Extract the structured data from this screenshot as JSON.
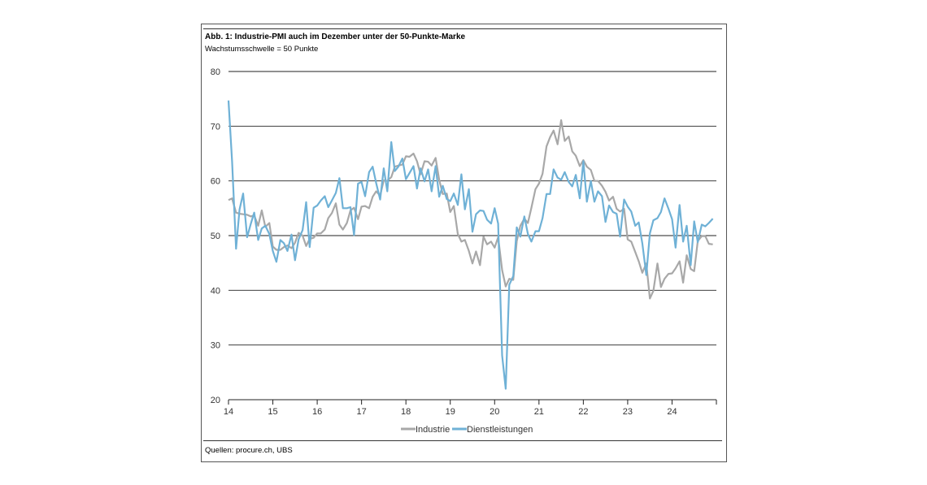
{
  "title": "Abb. 1: Industrie-PMI auch im Dezember unter der 50-Punkte-Marke",
  "subtitle": "Wachstumsschwelle = 50 Punkte",
  "source": "Quellen: procure.ch, UBS",
  "chart_data": {
    "type": "line",
    "title": "Abb. 1: Industrie-PMI auch im Dezember unter der 50-Punkte-Marke",
    "subtitle": "Wachstumsschwelle = 50 Punkte",
    "xlabel": "",
    "ylabel": "",
    "xlim": [
      2014.0,
      2025.0
    ],
    "ylim": [
      20,
      80
    ],
    "yticks": [
      20,
      30,
      40,
      50,
      60,
      70,
      80
    ],
    "xticks": [
      "14",
      "15",
      "16",
      "17",
      "18",
      "19",
      "20",
      "21",
      "22",
      "23",
      "24"
    ],
    "grid": "horizontal",
    "legend": "bottom-center",
    "colors": {
      "Industrie": "#a8a8a8",
      "Dienstleistungen": "#6fb1d6"
    },
    "series": [
      {
        "name": "Industrie",
        "points": [
          [
            2014.0,
            56.5
          ],
          [
            2014.08,
            56.8
          ],
          [
            2014.17,
            54.2
          ],
          [
            2014.25,
            54.0
          ],
          [
            2014.33,
            53.9
          ],
          [
            2014.42,
            53.8
          ],
          [
            2014.5,
            53.5
          ],
          [
            2014.58,
            53.7
          ],
          [
            2014.67,
            51.8
          ],
          [
            2014.75,
            54.6
          ],
          [
            2014.83,
            51.6
          ],
          [
            2014.92,
            52.3
          ],
          [
            2015.0,
            48.0
          ],
          [
            2015.08,
            47.4
          ],
          [
            2015.17,
            47.4
          ],
          [
            2015.25,
            47.9
          ],
          [
            2015.33,
            48.2
          ],
          [
            2015.42,
            47.7
          ],
          [
            2015.5,
            48.7
          ],
          [
            2015.58,
            50.5
          ],
          [
            2015.67,
            50.0
          ],
          [
            2015.75,
            48.1
          ],
          [
            2015.83,
            49.4
          ],
          [
            2015.92,
            49.6
          ],
          [
            2016.0,
            50.4
          ],
          [
            2016.08,
            50.4
          ],
          [
            2016.17,
            51.1
          ],
          [
            2016.25,
            53.2
          ],
          [
            2016.33,
            54.1
          ],
          [
            2016.42,
            55.9
          ],
          [
            2016.5,
            52.0
          ],
          [
            2016.58,
            51.1
          ],
          [
            2016.67,
            52.3
          ],
          [
            2016.75,
            54.6
          ],
          [
            2016.83,
            55.1
          ],
          [
            2016.92,
            53.0
          ],
          [
            2017.0,
            55.3
          ],
          [
            2017.08,
            55.4
          ],
          [
            2017.17,
            55.0
          ],
          [
            2017.25,
            57.1
          ],
          [
            2017.33,
            58.1
          ],
          [
            2017.42,
            57.3
          ],
          [
            2017.5,
            60.1
          ],
          [
            2017.58,
            60.0
          ],
          [
            2017.67,
            60.7
          ],
          [
            2017.75,
            62.6
          ],
          [
            2017.83,
            62.8
          ],
          [
            2017.92,
            63.0
          ],
          [
            2018.0,
            64.5
          ],
          [
            2018.08,
            64.4
          ],
          [
            2018.17,
            65.0
          ],
          [
            2018.25,
            63.6
          ],
          [
            2018.33,
            61.2
          ],
          [
            2018.42,
            63.6
          ],
          [
            2018.5,
            63.5
          ],
          [
            2018.58,
            62.8
          ],
          [
            2018.67,
            64.2
          ],
          [
            2018.75,
            60.2
          ],
          [
            2018.83,
            57.6
          ],
          [
            2018.92,
            57.7
          ],
          [
            2019.0,
            54.3
          ],
          [
            2019.08,
            55.4
          ],
          [
            2019.17,
            50.3
          ],
          [
            2019.25,
            48.9
          ],
          [
            2019.33,
            49.2
          ],
          [
            2019.42,
            47.2
          ],
          [
            2019.5,
            44.9
          ],
          [
            2019.58,
            47.1
          ],
          [
            2019.67,
            44.6
          ],
          [
            2019.75,
            49.8
          ],
          [
            2019.83,
            48.4
          ],
          [
            2019.92,
            48.9
          ],
          [
            2020.0,
            47.8
          ],
          [
            2020.08,
            49.7
          ],
          [
            2020.17,
            43.7
          ],
          [
            2020.25,
            40.7
          ],
          [
            2020.33,
            42.1
          ],
          [
            2020.42,
            41.9
          ],
          [
            2020.5,
            49.0
          ],
          [
            2020.58,
            51.8
          ],
          [
            2020.67,
            53.1
          ],
          [
            2020.75,
            52.3
          ],
          [
            2020.83,
            55.1
          ],
          [
            2020.92,
            58.5
          ],
          [
            2021.0,
            59.5
          ],
          [
            2021.08,
            61.3
          ],
          [
            2021.17,
            66.3
          ],
          [
            2021.25,
            68.0
          ],
          [
            2021.33,
            69.2
          ],
          [
            2021.42,
            66.7
          ],
          [
            2021.5,
            71.1
          ],
          [
            2021.58,
            67.3
          ],
          [
            2021.67,
            68.1
          ],
          [
            2021.75,
            65.4
          ],
          [
            2021.83,
            64.6
          ],
          [
            2021.92,
            62.7
          ],
          [
            2022.0,
            63.8
          ],
          [
            2022.08,
            62.6
          ],
          [
            2022.17,
            62.0
          ],
          [
            2022.25,
            60.0
          ],
          [
            2022.33,
            60.0
          ],
          [
            2022.42,
            59.1
          ],
          [
            2022.5,
            58.0
          ],
          [
            2022.58,
            56.4
          ],
          [
            2022.67,
            57.1
          ],
          [
            2022.75,
            54.9
          ],
          [
            2022.83,
            54.4
          ],
          [
            2022.92,
            54.9
          ],
          [
            2023.0,
            49.3
          ],
          [
            2023.08,
            48.9
          ],
          [
            2023.17,
            47.0
          ],
          [
            2023.25,
            45.3
          ],
          [
            2023.33,
            43.2
          ],
          [
            2023.42,
            44.9
          ],
          [
            2023.5,
            38.5
          ],
          [
            2023.58,
            39.9
          ],
          [
            2023.67,
            44.9
          ],
          [
            2023.75,
            40.6
          ],
          [
            2023.83,
            42.1
          ],
          [
            2023.92,
            43.0
          ],
          [
            2024.0,
            43.1
          ],
          [
            2024.08,
            44.0
          ],
          [
            2024.17,
            45.3
          ],
          [
            2024.25,
            41.4
          ],
          [
            2024.33,
            46.4
          ],
          [
            2024.42,
            43.9
          ],
          [
            2024.5,
            43.5
          ],
          [
            2024.58,
            49.0
          ],
          [
            2024.67,
            49.9
          ],
          [
            2024.75,
            49.9
          ],
          [
            2024.83,
            48.5
          ],
          [
            2024.92,
            48.4
          ]
        ]
      },
      {
        "name": "Dienstleistungen",
        "points": [
          [
            2014.0,
            74.7
          ],
          [
            2014.08,
            63.6
          ],
          [
            2014.17,
            47.6
          ],
          [
            2014.25,
            54.8
          ],
          [
            2014.33,
            57.7
          ],
          [
            2014.42,
            49.7
          ],
          [
            2014.5,
            52.1
          ],
          [
            2014.58,
            54.2
          ],
          [
            2014.67,
            49.2
          ],
          [
            2014.75,
            51.3
          ],
          [
            2014.83,
            51.8
          ],
          [
            2014.92,
            50.3
          ],
          [
            2015.0,
            47.2
          ],
          [
            2015.08,
            45.2
          ],
          [
            2015.17,
            49.2
          ],
          [
            2015.25,
            48.6
          ],
          [
            2015.33,
            47.2
          ],
          [
            2015.42,
            50.2
          ],
          [
            2015.5,
            45.5
          ],
          [
            2015.58,
            49.3
          ],
          [
            2015.67,
            51.0
          ],
          [
            2015.75,
            56.1
          ],
          [
            2015.83,
            47.9
          ],
          [
            2015.92,
            55.1
          ],
          [
            2016.0,
            55.5
          ],
          [
            2016.08,
            56.4
          ],
          [
            2016.17,
            57.2
          ],
          [
            2016.25,
            55.2
          ],
          [
            2016.33,
            56.4
          ],
          [
            2016.42,
            57.8
          ],
          [
            2016.5,
            60.5
          ],
          [
            2016.58,
            55.0
          ],
          [
            2016.67,
            55.0
          ],
          [
            2016.75,
            55.2
          ],
          [
            2016.83,
            50.1
          ],
          [
            2016.92,
            59.5
          ],
          [
            2017.0,
            59.8
          ],
          [
            2017.08,
            57.2
          ],
          [
            2017.17,
            61.6
          ],
          [
            2017.25,
            62.6
          ],
          [
            2017.33,
            59.6
          ],
          [
            2017.42,
            56.6
          ],
          [
            2017.5,
            62.3
          ],
          [
            2017.58,
            58.1
          ],
          [
            2017.67,
            67.1
          ],
          [
            2017.75,
            61.8
          ],
          [
            2017.83,
            62.6
          ],
          [
            2017.92,
            64.1
          ],
          [
            2018.0,
            60.3
          ],
          [
            2018.08,
            61.4
          ],
          [
            2018.17,
            62.7
          ],
          [
            2018.25,
            58.6
          ],
          [
            2018.33,
            62.3
          ],
          [
            2018.42,
            59.9
          ],
          [
            2018.5,
            62.1
          ],
          [
            2018.58,
            58.1
          ],
          [
            2018.67,
            62.7
          ],
          [
            2018.75,
            57.1
          ],
          [
            2018.83,
            59.1
          ],
          [
            2018.92,
            56.7
          ],
          [
            2019.0,
            56.3
          ],
          [
            2019.08,
            57.7
          ],
          [
            2019.17,
            55.6
          ],
          [
            2019.25,
            61.2
          ],
          [
            2019.33,
            54.8
          ],
          [
            2019.42,
            58.5
          ],
          [
            2019.5,
            50.7
          ],
          [
            2019.58,
            53.9
          ],
          [
            2019.67,
            54.6
          ],
          [
            2019.75,
            54.5
          ],
          [
            2019.83,
            52.9
          ],
          [
            2019.92,
            52.2
          ],
          [
            2020.0,
            55.0
          ],
          [
            2020.08,
            52.2
          ],
          [
            2020.17,
            28.1
          ],
          [
            2020.25,
            22.0
          ],
          [
            2020.33,
            41.0
          ],
          [
            2020.42,
            42.6
          ],
          [
            2020.5,
            51.5
          ],
          [
            2020.58,
            49.8
          ],
          [
            2020.67,
            53.5
          ],
          [
            2020.75,
            50.3
          ],
          [
            2020.83,
            48.9
          ],
          [
            2020.92,
            50.8
          ],
          [
            2021.0,
            50.8
          ],
          [
            2021.08,
            53.2
          ],
          [
            2021.17,
            57.6
          ],
          [
            2021.25,
            57.6
          ],
          [
            2021.33,
            62.1
          ],
          [
            2021.42,
            60.6
          ],
          [
            2021.5,
            60.2
          ],
          [
            2021.58,
            61.6
          ],
          [
            2021.67,
            59.8
          ],
          [
            2021.75,
            59.0
          ],
          [
            2021.83,
            61.1
          ],
          [
            2021.92,
            56.8
          ],
          [
            2022.0,
            63.6
          ],
          [
            2022.08,
            56.2
          ],
          [
            2022.17,
            60.0
          ],
          [
            2022.25,
            56.2
          ],
          [
            2022.33,
            58.1
          ],
          [
            2022.42,
            57.2
          ],
          [
            2022.5,
            52.5
          ],
          [
            2022.58,
            55.5
          ],
          [
            2022.67,
            54.3
          ],
          [
            2022.75,
            54.0
          ],
          [
            2022.83,
            49.8
          ],
          [
            2022.92,
            56.6
          ],
          [
            2023.0,
            55.3
          ],
          [
            2023.08,
            54.4
          ],
          [
            2023.17,
            51.8
          ],
          [
            2023.25,
            52.4
          ],
          [
            2023.33,
            48.6
          ],
          [
            2023.42,
            42.8
          ],
          [
            2023.5,
            50.4
          ],
          [
            2023.58,
            52.8
          ],
          [
            2023.67,
            53.2
          ],
          [
            2023.75,
            54.3
          ],
          [
            2023.83,
            56.8
          ],
          [
            2023.92,
            54.9
          ],
          [
            2024.0,
            53.0
          ],
          [
            2024.08,
            47.8
          ],
          [
            2024.17,
            55.6
          ],
          [
            2024.25,
            48.9
          ],
          [
            2024.33,
            51.8
          ],
          [
            2024.42,
            44.6
          ],
          [
            2024.5,
            52.6
          ],
          [
            2024.58,
            48.8
          ],
          [
            2024.67,
            52.0
          ],
          [
            2024.75,
            51.7
          ],
          [
            2024.83,
            52.3
          ],
          [
            2024.92,
            53.1
          ]
        ]
      }
    ]
  }
}
